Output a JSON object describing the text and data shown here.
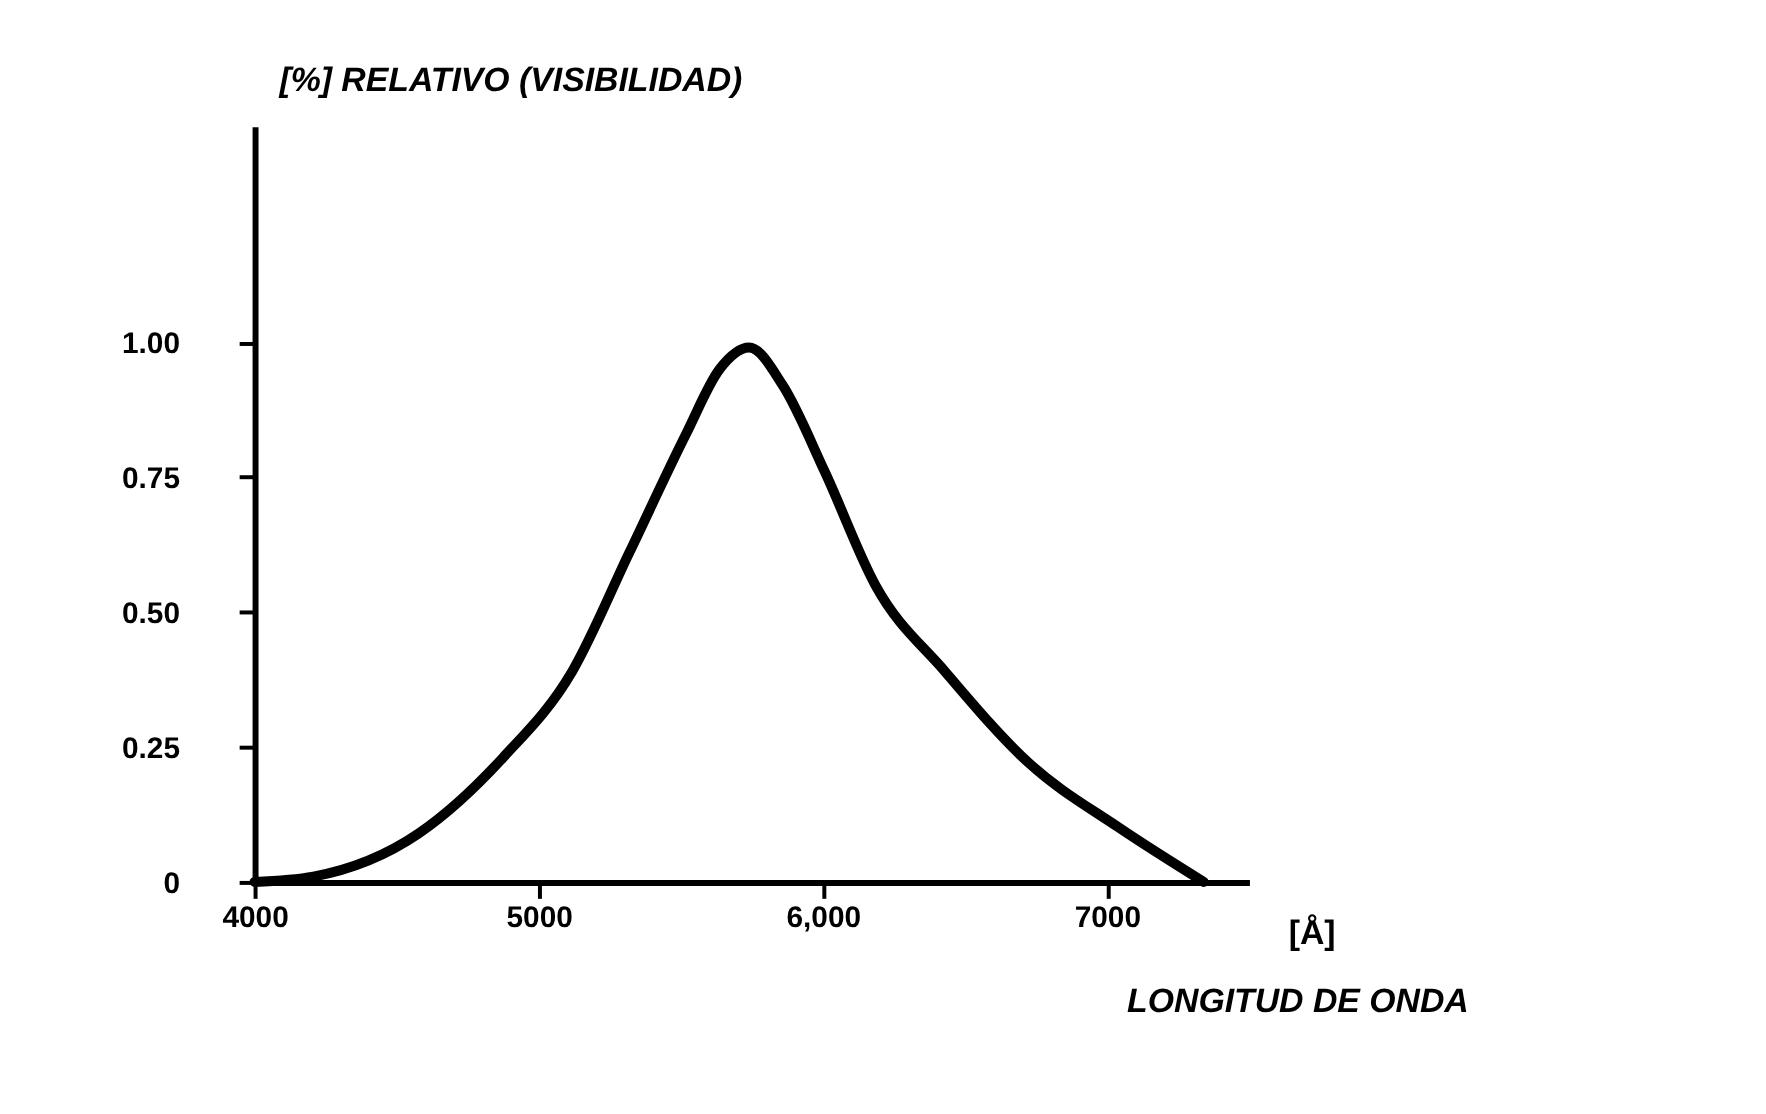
{
  "chart_data": {
    "type": "line",
    "ylabel": "[%] RELATIVO (VISIBILIDAD)",
    "xlabel": "LONGITUD DE ONDA",
    "annotations": [
      "[Å]"
    ],
    "series": [
      {
        "color": "#000000",
        "x": [
          4000,
          4207,
          4578,
          4874,
          5118,
          5319,
          5519,
          5637,
          5741,
          5859,
          6007,
          6185,
          6430,
          6726,
          7044,
          7341
        ],
        "values": [
          0,
          0.01,
          0.09,
          0.23,
          0.39,
          0.61,
          0.83,
          0.95,
          0.99,
          0.92,
          0.76,
          0.55,
          0.39,
          0.22,
          0.1,
          0
        ]
      }
    ],
    "xlim": [
      4000,
      7500
    ],
    "ylim": [
      0,
      1.4
    ],
    "xticks": [
      4000,
      5000,
      {
        "value": 6000,
        "label": "6,000"
      },
      7000
    ],
    "yticks": [
      0,
      0.25,
      {
        "value": 0.5,
        "label": "0.50"
      },
      0.75,
      {
        "value": 1,
        "label": "1.00"
      }
    ],
    "grid": false,
    "line_style": "solid"
  }
}
